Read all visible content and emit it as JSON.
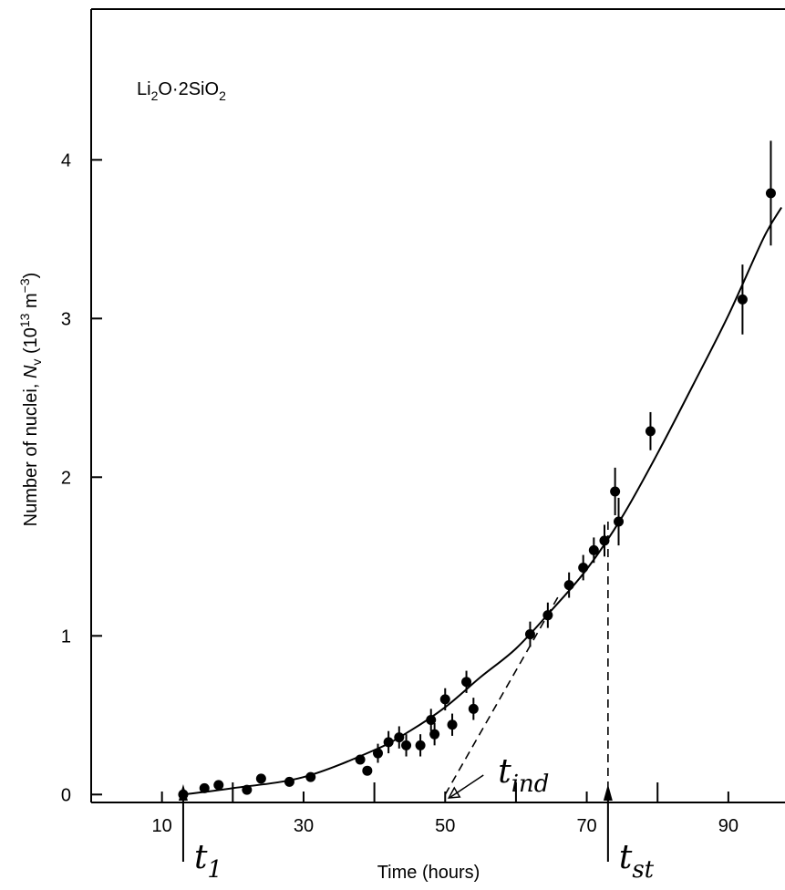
{
  "chart_data": {
    "type": "scatter",
    "annotation": {
      "pre": "Li",
      "s1": "2",
      "mid": "O·2SiO",
      "s2": "2"
    },
    "xlabel": "Time (hours)",
    "ylabel": {
      "pre": "Number of nuclei, ",
      "sym": "N",
      "symsub": "v",
      "unit_pre": " (10",
      "exp1": "13",
      "unit_mid": " m",
      "exp2": "−3",
      "unit_post": ")"
    },
    "xlim": [
      0,
      98
    ],
    "ylim": [
      -0.05,
      4.95
    ],
    "xticks": [
      10,
      30,
      50,
      70,
      90
    ],
    "xtick_labels": [
      "10",
      "30",
      "50",
      "70",
      "90"
    ],
    "yticks": [
      0,
      1,
      2,
      3,
      4
    ],
    "ytick_labels": [
      "0",
      "1",
      "2",
      "3",
      "4"
    ],
    "grid": false,
    "series": [
      {
        "points": [
          {
            "x": 13,
            "y": 0.0,
            "err": 0
          },
          {
            "x": 16,
            "y": 0.04,
            "err": 0
          },
          {
            "x": 18,
            "y": 0.06,
            "err": 0
          },
          {
            "x": 22,
            "y": 0.03,
            "err": 0
          },
          {
            "x": 24,
            "y": 0.1,
            "err": 0
          },
          {
            "x": 28,
            "y": 0.08,
            "err": 0
          },
          {
            "x": 31,
            "y": 0.11,
            "err": 0
          },
          {
            "x": 38,
            "y": 0.22,
            "err": 0
          },
          {
            "x": 39,
            "y": 0.15,
            "err": 0
          },
          {
            "x": 40.5,
            "y": 0.26,
            "err": 0.06
          },
          {
            "x": 42,
            "y": 0.33,
            "err": 0.07
          },
          {
            "x": 43.5,
            "y": 0.36,
            "err": 0.07
          },
          {
            "x": 44.5,
            "y": 0.31,
            "err": 0.07
          },
          {
            "x": 46.5,
            "y": 0.31,
            "err": 0.07
          },
          {
            "x": 48,
            "y": 0.47,
            "err": 0.07
          },
          {
            "x": 48.5,
            "y": 0.38,
            "err": 0.07
          },
          {
            "x": 50,
            "y": 0.6,
            "err": 0.07
          },
          {
            "x": 51,
            "y": 0.44,
            "err": 0.07
          },
          {
            "x": 53,
            "y": 0.71,
            "err": 0.07
          },
          {
            "x": 54,
            "y": 0.54,
            "err": 0.07
          },
          {
            "x": 62,
            "y": 1.01,
            "err": 0.08
          },
          {
            "x": 64.5,
            "y": 1.13,
            "err": 0.08
          },
          {
            "x": 67.5,
            "y": 1.32,
            "err": 0.08
          },
          {
            "x": 69.5,
            "y": 1.43,
            "err": 0.08
          },
          {
            "x": 71,
            "y": 1.54,
            "err": 0.08
          },
          {
            "x": 72.5,
            "y": 1.6,
            "err": 0.1
          },
          {
            "x": 74,
            "y": 1.91,
            "err": 0.15
          },
          {
            "x": 74.5,
            "y": 1.72,
            "err": 0.15
          },
          {
            "x": 79,
            "y": 2.29,
            "err": 0.12
          },
          {
            "x": 92,
            "y": 3.12,
            "err": 0.22
          },
          {
            "x": 96,
            "y": 3.79,
            "err": 0.33
          }
        ]
      }
    ],
    "fit_curve": [
      [
        13,
        0.0
      ],
      [
        20,
        0.04
      ],
      [
        30,
        0.11
      ],
      [
        40,
        0.28
      ],
      [
        45,
        0.4
      ],
      [
        50,
        0.55
      ],
      [
        55,
        0.74
      ],
      [
        60,
        0.92
      ],
      [
        65,
        1.16
      ],
      [
        70,
        1.42
      ],
      [
        75,
        1.75
      ],
      [
        80,
        2.15
      ],
      [
        85,
        2.58
      ],
      [
        90,
        3.02
      ],
      [
        95,
        3.51
      ],
      [
        97.5,
        3.7
      ]
    ],
    "tangent_line": [
      [
        50,
        0.0
      ],
      [
        66,
        1.25
      ]
    ],
    "markers": {
      "t1": {
        "x": 13,
        "label": "t",
        "sub": "1"
      },
      "t_ind": {
        "x": 50,
        "label": "t",
        "sub": "ind"
      },
      "t_st": {
        "x": 73,
        "label": "t",
        "sub": "st"
      }
    }
  }
}
